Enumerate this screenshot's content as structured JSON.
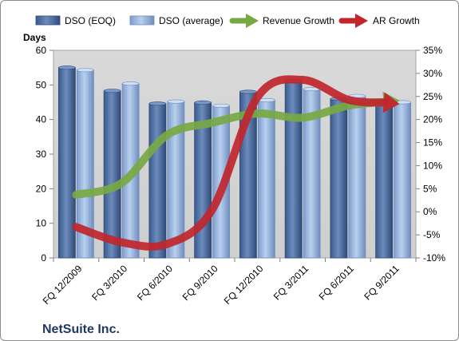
{
  "chart_data": {
    "type": "bar",
    "categories": [
      "FQ 12/2009",
      "FQ 3/2010",
      "FQ 6/2010",
      "FQ 9/2010",
      "FQ 12/2010",
      "FQ 3/2011",
      "FQ 6/2011",
      "FQ 9/2011"
    ],
    "series": [
      {
        "name": "DSO (EOQ)",
        "kind": "bar",
        "axis": "left",
        "color": "#4f6fa0",
        "values": [
          55,
          48.3,
          44.6,
          44.9,
          48,
          51.2,
          46,
          45
        ]
      },
      {
        "name": "DSO (average)",
        "kind": "bar",
        "axis": "left",
        "color": "#9dbbe3",
        "values": [
          54.3,
          50.4,
          45.2,
          44,
          45.6,
          48.8,
          46.8,
          45
        ]
      },
      {
        "name": "Revenue Growth",
        "kind": "arrow-line",
        "axis": "right",
        "color": "#77a844",
        "values": [
          3.7,
          6.2,
          16.6,
          19.3,
          21.3,
          20.4,
          23,
          24
        ]
      },
      {
        "name": "AR Growth",
        "kind": "arrow-line",
        "axis": "right",
        "color": "#c0262c",
        "values": [
          -3.3,
          -6.6,
          -7,
          0.4,
          24.8,
          28.6,
          24.3,
          23.5
        ]
      }
    ],
    "ylabel": "Days",
    "ylim": [
      0,
      60
    ],
    "yticks": [
      "0",
      "10",
      "20",
      "30",
      "40",
      "50",
      "60"
    ],
    "y2lim": [
      -10,
      35
    ],
    "y2ticks": [
      "-10%",
      "-5%",
      "0%",
      "5%",
      "10%",
      "15%",
      "20%",
      "25%",
      "30%",
      "35%"
    ],
    "grid": false,
    "legend": "top",
    "plot_background": "#d3d3d3",
    "annotation": "NetSuite Inc."
  }
}
